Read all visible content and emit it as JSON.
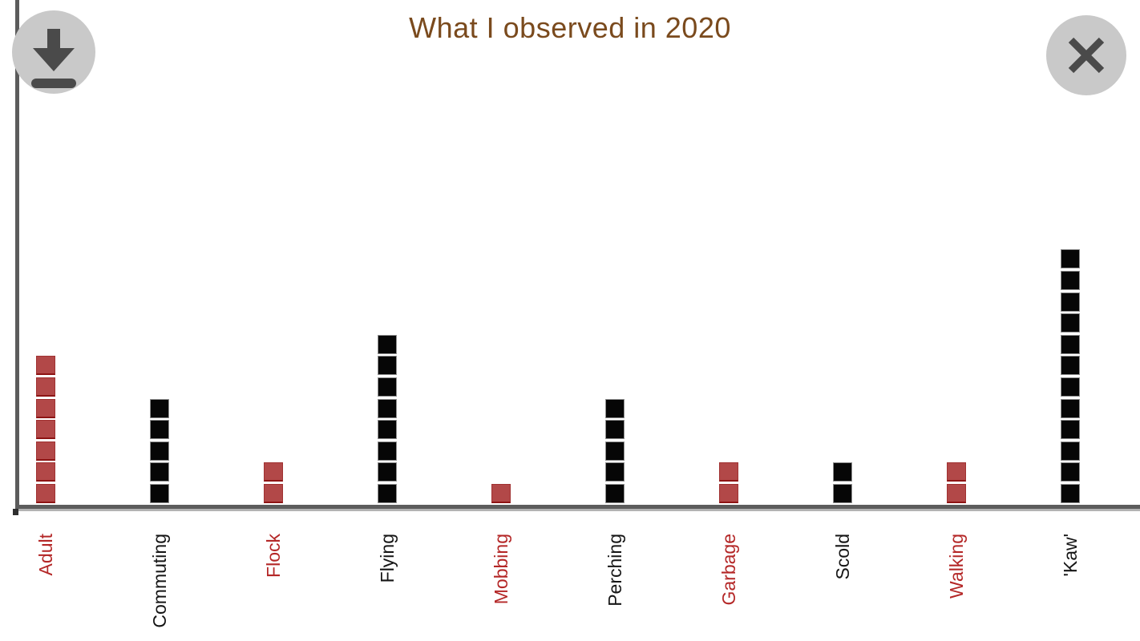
{
  "title": "What I observed in 2020",
  "toolbar": {
    "download_label": "Download image",
    "close_label": "Close"
  },
  "chart_data": {
    "type": "bar",
    "subtype": "stacked-unit-squares",
    "title": "What I observed in 2020",
    "categories": [
      "Adult",
      "Commuting",
      "Flock",
      "Flying",
      "Mobbing",
      "Perching",
      "Garbage",
      "Scold",
      "Walking",
      "'Kaw'"
    ],
    "values": [
      7,
      5,
      2,
      8,
      1,
      5,
      2,
      2,
      2,
      12
    ],
    "colors": [
      "red",
      "black",
      "red",
      "black",
      "red",
      "black",
      "red",
      "black",
      "red",
      "black"
    ],
    "xlabel": "",
    "ylabel": "",
    "ylim": [
      0,
      12
    ],
    "grid": false,
    "legend": "none",
    "tick_label_rotation": 90
  },
  "colors": {
    "title_color": "#7a4a1d",
    "axis_color": "#5c5c5c",
    "axis_shadow": "#b3b3b3",
    "red_fill": "#b24848",
    "red_border": "#a03232",
    "red_border_dark": "#8d1414",
    "black_fill": "#060606",
    "black_border": "#8f8f8f",
    "red_label": "#b42727",
    "black_label": "#151515",
    "button_bg": "#c9c9c9",
    "button_glyph": "#4a4a4a"
  }
}
